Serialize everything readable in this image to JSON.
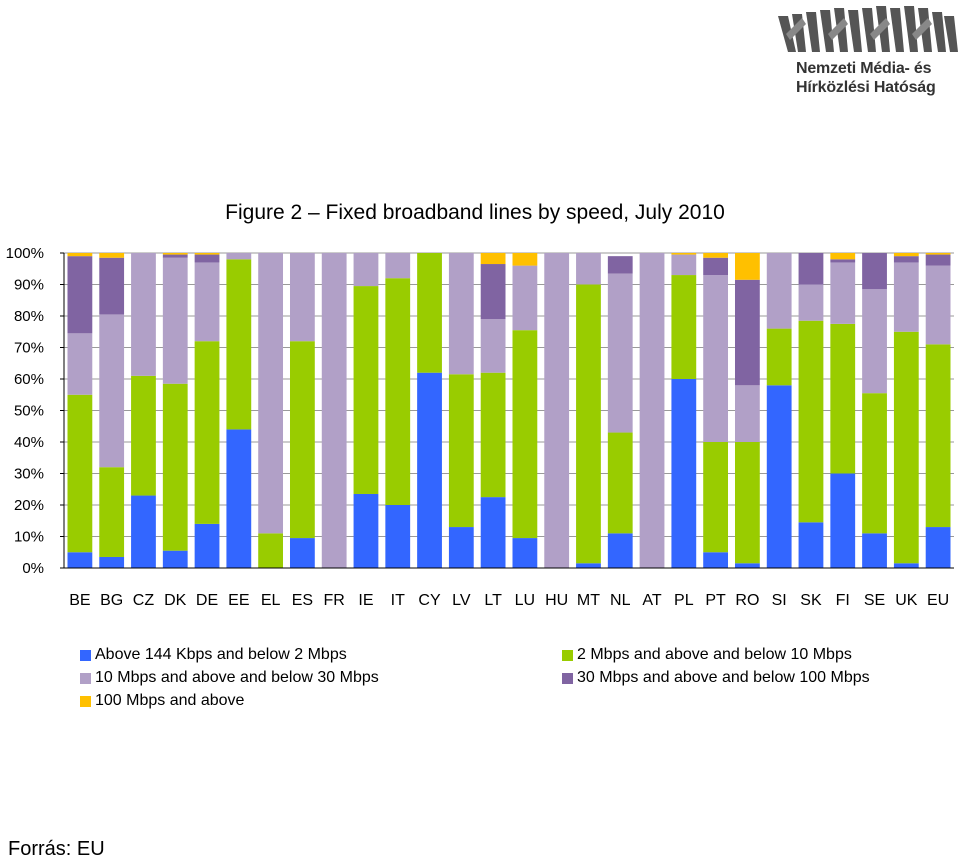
{
  "logo": {
    "line1": "Nemzeti Média- és",
    "line2": "Hírközlési Hatóság",
    "color": "#333333"
  },
  "source": "Forrás: EU",
  "chart_data": {
    "type": "bar",
    "stacked": true,
    "title": "Figure 2 – Fixed broadband lines by speed, July 2010",
    "xlabel": "",
    "ylabel": "",
    "ylim": [
      0,
      100
    ],
    "y_ticks": [
      "0%",
      "10%",
      "20%",
      "30%",
      "40%",
      "50%",
      "60%",
      "70%",
      "80%",
      "90%",
      "100%"
    ],
    "grid": true,
    "legend_position": "bottom",
    "categories": [
      "BE",
      "BG",
      "CZ",
      "DK",
      "DE",
      "EE",
      "EL",
      "ES",
      "FR",
      "IE",
      "IT",
      "CY",
      "LV",
      "LT",
      "LU",
      "HU",
      "MT",
      "NL",
      "AT",
      "PL",
      "PT",
      "RO",
      "SI",
      "SK",
      "FI",
      "SE",
      "UK",
      "EU"
    ],
    "series": [
      {
        "name": "Above 144 Kbps and below 2 Mbps",
        "color": "#3366ff",
        "values": [
          5,
          3.5,
          23,
          5.5,
          14,
          44,
          0,
          9.5,
          0,
          23.5,
          20,
          62,
          13,
          22.5,
          9.5,
          0,
          1.5,
          11,
          0,
          60,
          5,
          1.5,
          58,
          14.5,
          30,
          11,
          1.5,
          13
        ]
      },
      {
        "name": "2 Mbps and above and below 10 Mbps",
        "color": "#99cc00",
        "values": [
          50,
          28.5,
          38,
          53,
          58,
          54,
          11,
          62.5,
          0,
          66,
          72,
          38,
          48.5,
          39.5,
          66,
          0,
          88.5,
          32,
          0,
          33,
          35,
          38.5,
          18,
          64,
          47.5,
          44.5,
          73.5,
          58
        ]
      },
      {
        "name": "10 Mbps and above and below 30 Mbps",
        "color": "#b1a0c7",
        "values": [
          19.5,
          48.5,
          39,
          40,
          25,
          2,
          89,
          28,
          100,
          10.5,
          8,
          0,
          38.5,
          17,
          20.5,
          100,
          10,
          50.5,
          100,
          6.5,
          53,
          18,
          24,
          11.5,
          19.5,
          33,
          22,
          25
        ]
      },
      {
        "name": "30 Mbps and above and below 100 Mbps",
        "color": "#8064a2",
        "values": [
          24.5,
          18,
          0,
          1,
          2.5,
          0,
          0,
          0,
          0,
          0,
          0,
          0,
          0,
          17.5,
          0,
          0,
          0,
          5.5,
          0,
          0,
          5.5,
          33.5,
          0,
          10,
          1,
          11.5,
          2,
          3.5
        ]
      },
      {
        "name": "100 Mbps and above",
        "color": "#ffc000",
        "values": [
          1,
          1.5,
          0,
          0.5,
          0.5,
          0,
          0,
          0,
          0,
          0,
          0,
          0,
          0,
          3.5,
          4,
          0,
          0,
          0,
          0,
          0.5,
          1.5,
          8.5,
          0,
          0,
          2,
          0,
          1,
          0.5
        ]
      }
    ]
  }
}
